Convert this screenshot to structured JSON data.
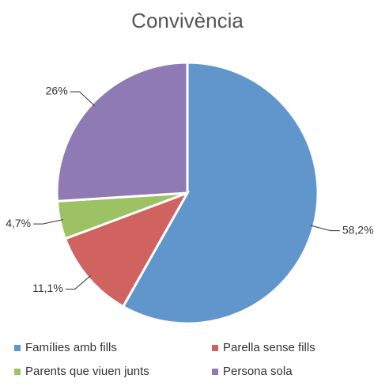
{
  "chart_data": {
    "type": "pie",
    "title": "Convivència",
    "categories": [
      "Famílies amb fills",
      "Parella sense fills",
      "Parents que viuen junts",
      "Persona sola"
    ],
    "values": [
      58.2,
      11.1,
      4.7,
      26
    ],
    "value_labels": [
      "58,2%",
      "11,1%",
      "4,7%",
      "26%"
    ],
    "colors": [
      "#6096cc",
      "#d0635f",
      "#9dc263",
      "#8f7ab3"
    ],
    "legend": "bottom"
  }
}
